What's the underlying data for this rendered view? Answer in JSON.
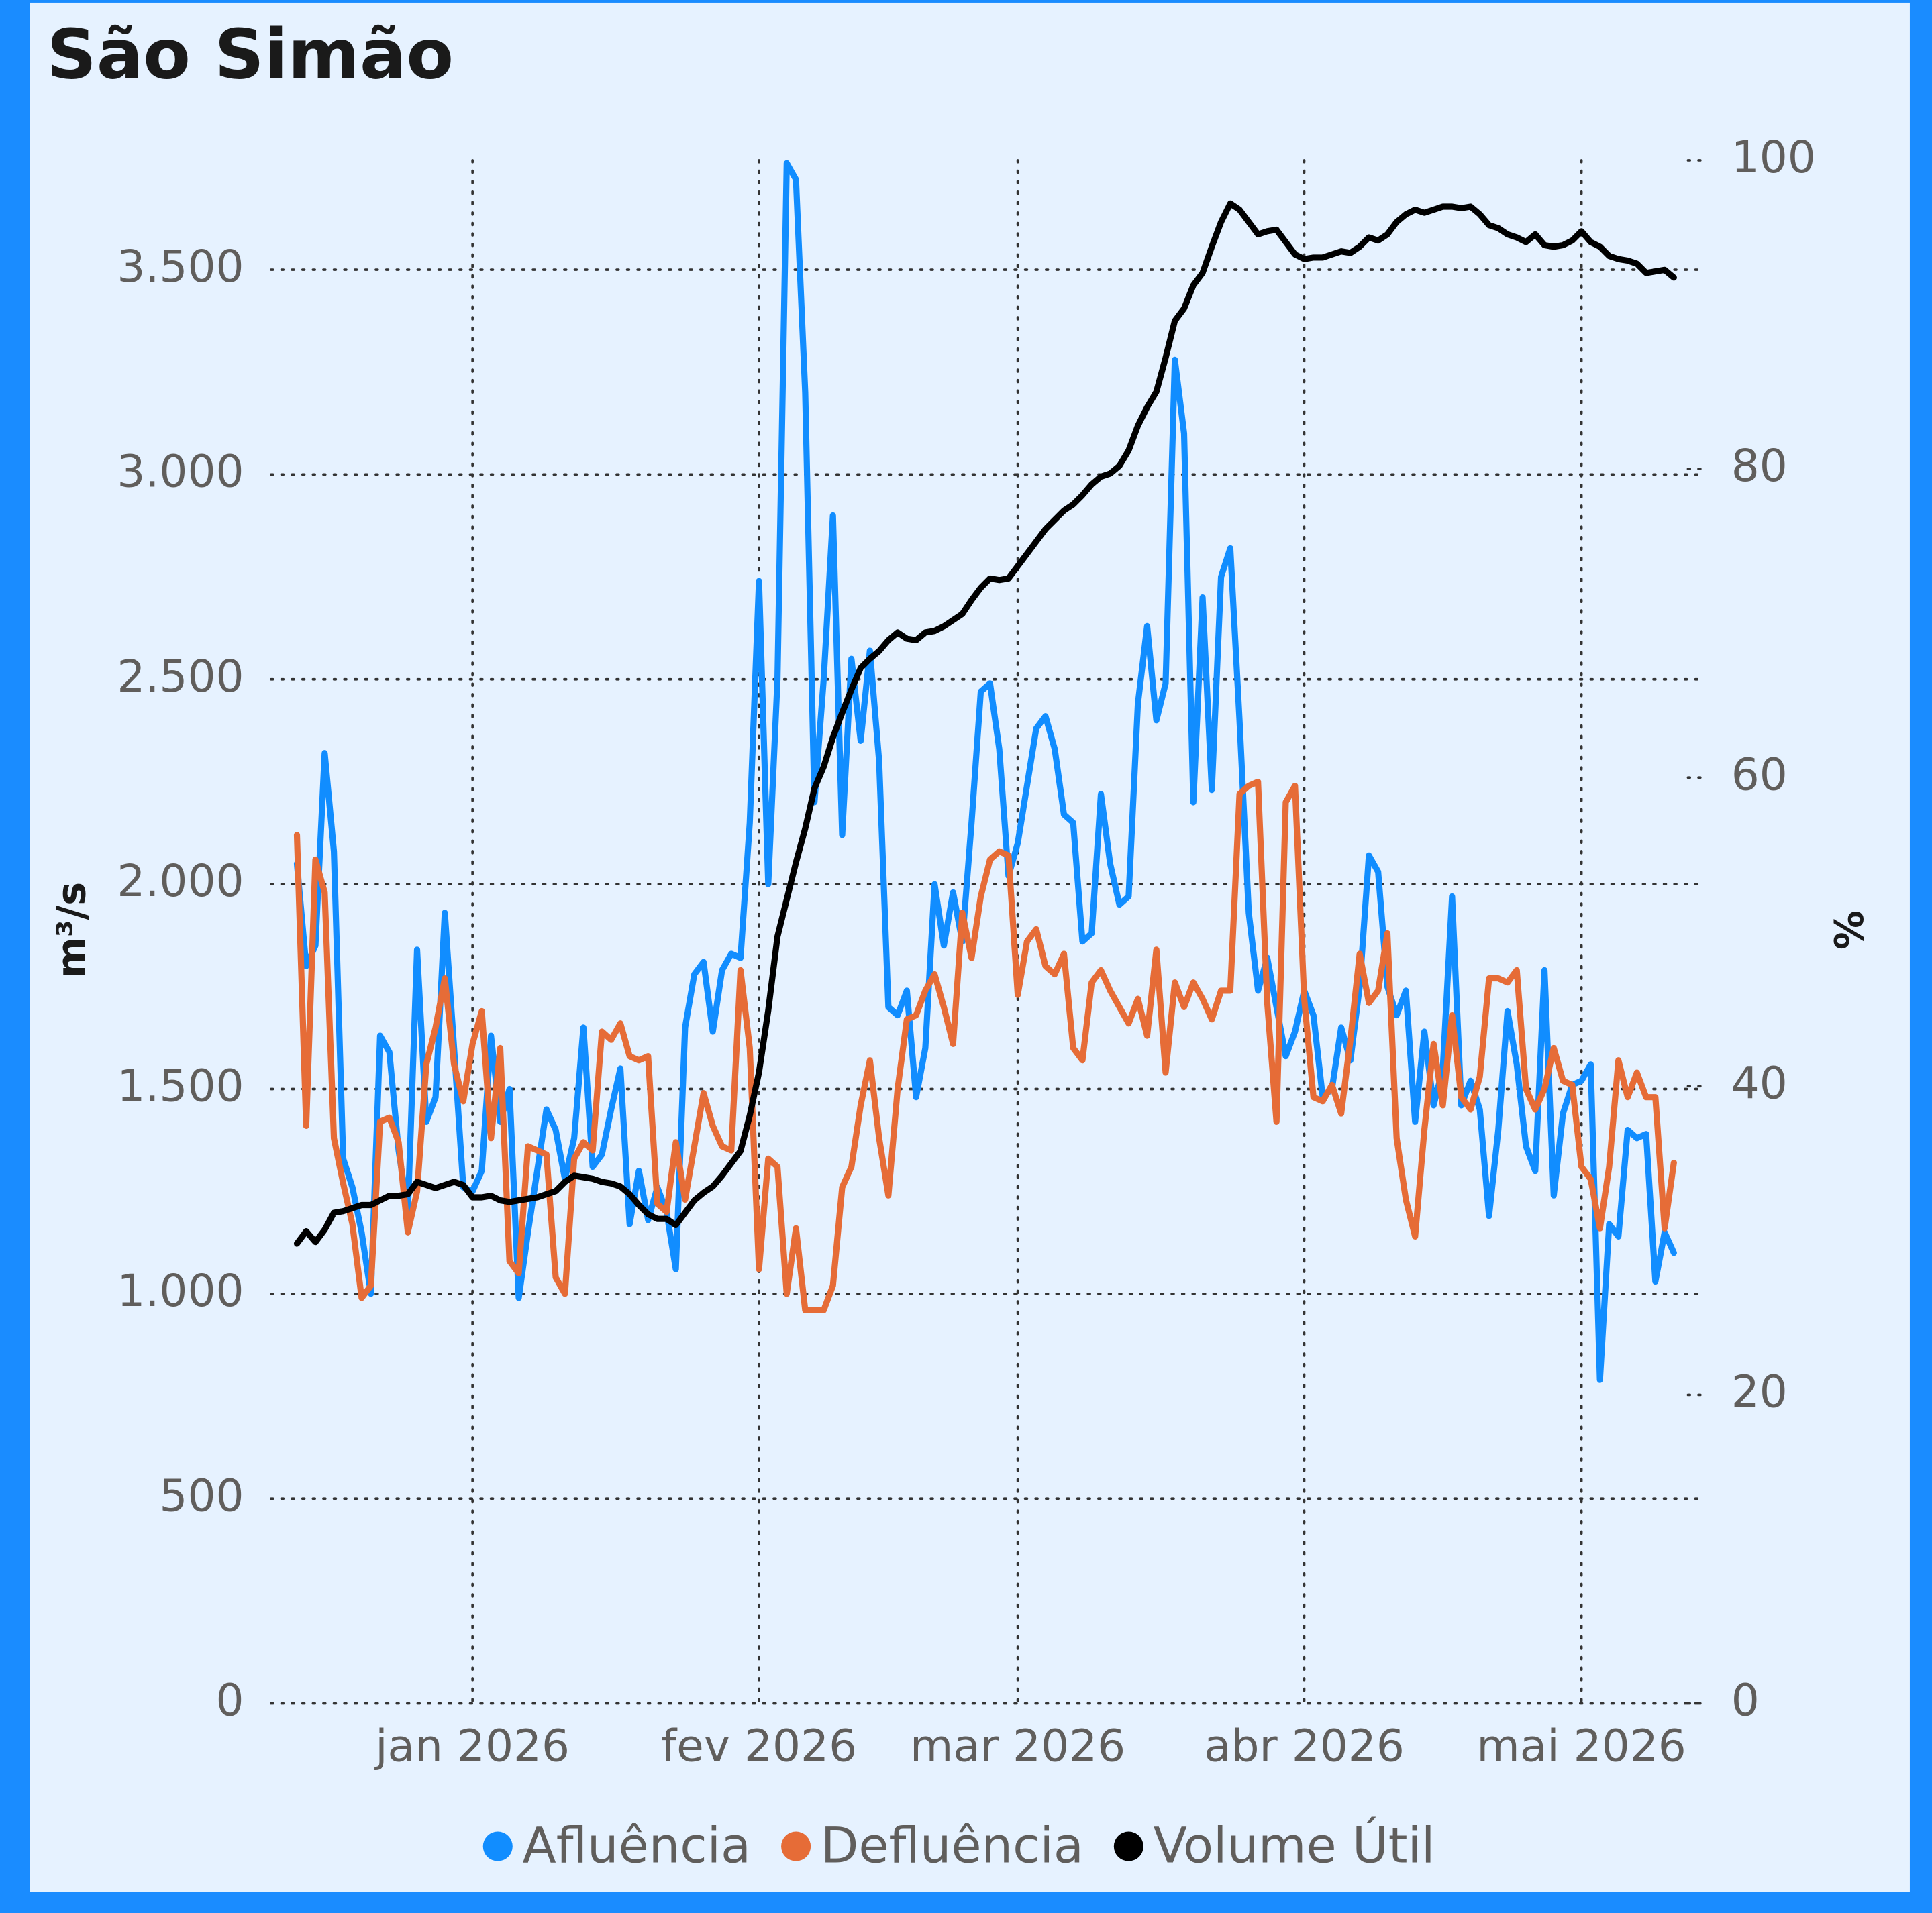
{
  "chart_data": {
    "type": "line",
    "title": "São Simão",
    "y_label": "m³/s",
    "y2_label": "%",
    "categories": [
      null,
      null,
      null,
      null,
      null,
      null,
      null,
      null,
      null,
      null,
      null,
      null,
      null,
      null,
      null,
      null,
      null,
      null,
      null,
      "jan 2026",
      null,
      null,
      null,
      null,
      null,
      null,
      null,
      null,
      null,
      null,
      null,
      null,
      null,
      null,
      null,
      null,
      null,
      null,
      null,
      null,
      null,
      null,
      null,
      null,
      null,
      null,
      null,
      null,
      null,
      null,
      "fev 2026",
      null,
      null,
      null,
      null,
      null,
      null,
      null,
      null,
      null,
      null,
      null,
      null,
      null,
      null,
      null,
      null,
      null,
      null,
      null,
      null,
      null,
      null,
      null,
      null,
      null,
      null,
      null,
      "mar 2026",
      null,
      null,
      null,
      null,
      null,
      null,
      null,
      null,
      null,
      null,
      null,
      null,
      null,
      null,
      null,
      null,
      null,
      null,
      null,
      null,
      null,
      null,
      null,
      null,
      null,
      null,
      null,
      null,
      null,
      null,
      "abr 2026",
      null,
      null,
      null,
      null,
      null,
      null,
      null,
      null,
      null,
      null,
      null,
      null,
      null,
      null,
      null,
      null,
      null,
      null,
      null,
      null,
      null,
      null,
      null,
      null,
      null,
      null,
      null,
      null,
      null,
      "mai 2026",
      null,
      null,
      null,
      null,
      null,
      null,
      null,
      null,
      null,
      null
    ],
    "series": [
      {
        "name": "Afluência",
        "color": "#118dff",
        "values": [
          2050,
          1800,
          1850,
          2320,
          2080,
          1330,
          1260,
          1150,
          1000,
          1630,
          1590,
          1350,
          1200,
          1840,
          1420,
          1480,
          1930,
          1600,
          1260,
          1250,
          1300,
          1630,
          1420,
          1500,
          990,
          1150,
          1300,
          1450,
          1400,
          1280,
          1380,
          1650,
          1310,
          1340,
          1450,
          1550,
          1170,
          1300,
          1180,
          1260,
          1200,
          1060,
          1650,
          1780,
          1810,
          1640,
          1790,
          1830,
          1820,
          2150,
          2740,
          2000,
          2500,
          3760,
          3720,
          3200,
          2200,
          2500,
          2900,
          2120,
          2550,
          2350,
          2570,
          2300,
          1700,
          1680,
          1740,
          1480,
          1600,
          2000,
          1850,
          1980,
          1860,
          2150,
          2470,
          2490,
          2330,
          2020,
          2100,
          2240,
          2380,
          2410,
          2330,
          2170,
          2150,
          1860,
          1880,
          2220,
          2050,
          1950,
          1970,
          2440,
          2630,
          2400,
          2490,
          3280,
          3100,
          2200,
          2700,
          2230,
          2750,
          2820,
          2400,
          1930,
          1740,
          1820,
          1700,
          1580,
          1640,
          1740,
          1680,
          1480,
          1500,
          1650,
          1570,
          1750,
          2070,
          2030,
          1750,
          1680,
          1740,
          1420,
          1640,
          1460,
          1550,
          1970,
          1460,
          1520,
          1450,
          1190,
          1400,
          1690,
          1560,
          1360,
          1300,
          1790,
          1240,
          1440,
          1510,
          1520,
          1560,
          790,
          1170,
          1140,
          1400,
          1380,
          1390,
          1030,
          1150,
          1100
        ]
      },
      {
        "name": "Defluência",
        "color": "#e66c37",
        "values": [
          2120,
          1410,
          2060,
          1980,
          1380,
          1270,
          1170,
          990,
          1020,
          1420,
          1430,
          1370,
          1150,
          1250,
          1560,
          1650,
          1770,
          1560,
          1470,
          1610,
          1690,
          1380,
          1600,
          1080,
          1050,
          1360,
          1350,
          1340,
          1040,
          1000,
          1330,
          1370,
          1350,
          1640,
          1620,
          1660,
          1580,
          1570,
          1580,
          1220,
          1200,
          1370,
          1230,
          1360,
          1490,
          1410,
          1360,
          1350,
          1790,
          1600,
          1060,
          1330,
          1310,
          1000,
          1160,
          960,
          960,
          960,
          1020,
          1260,
          1310,
          1460,
          1570,
          1380,
          1240,
          1500,
          1670,
          1680,
          1740,
          1780,
          1700,
          1610,
          1930,
          1820,
          1970,
          2060,
          2080,
          2070,
          1730,
          1860,
          1890,
          1800,
          1780,
          1830,
          1600,
          1570,
          1760,
          1790,
          1740,
          1700,
          1660,
          1720,
          1630,
          1840,
          1540,
          1760,
          1700,
          1760,
          1720,
          1670,
          1740,
          1740,
          2220,
          2240,
          2250,
          1710,
          1420,
          2200,
          2240,
          1720,
          1480,
          1470,
          1510,
          1440,
          1620,
          1830,
          1710,
          1740,
          1880,
          1380,
          1230,
          1140,
          1400,
          1610,
          1460,
          1680,
          1480,
          1450,
          1530,
          1770,
          1770,
          1760,
          1790,
          1500,
          1450,
          1500,
          1600,
          1520,
          1510,
          1310,
          1280,
          1160,
          1310,
          1570,
          1480,
          1540,
          1480,
          1480,
          1160,
          1320
        ]
      },
      {
        "name": "Volume Útil",
        "color": "#000000",
        "axis": "y2",
        "values": [
          29.8,
          30.6,
          29.9,
          30.7,
          31.8,
          31.9,
          32.1,
          32.3,
          32.3,
          32.6,
          32.9,
          32.9,
          33.0,
          33.8,
          33.6,
          33.4,
          33.6,
          33.8,
          33.6,
          32.8,
          32.8,
          32.9,
          32.6,
          32.5,
          32.6,
          32.7,
          32.8,
          33.0,
          33.2,
          33.8,
          34.2,
          34.1,
          34.0,
          33.8,
          33.7,
          33.5,
          33.0,
          32.3,
          31.7,
          31.4,
          31.4,
          31.0,
          31.8,
          32.6,
          33.1,
          33.5,
          34.2,
          35.0,
          35.8,
          38.1,
          40.9,
          44.9,
          49.7,
          52.1,
          54.5,
          56.7,
          59.3,
          60.7,
          62.6,
          64.2,
          65.7,
          67.1,
          67.7,
          68.2,
          68.9,
          69.4,
          69.0,
          68.9,
          69.4,
          69.5,
          69.8,
          70.2,
          70.6,
          71.5,
          72.3,
          72.9,
          72.8,
          72.9,
          73.7,
          74.5,
          75.3,
          76.1,
          76.7,
          77.3,
          77.7,
          78.3,
          79.0,
          79.5,
          79.7,
          80.2,
          81.2,
          82.8,
          84.0,
          85.0,
          87.2,
          89.6,
          90.4,
          91.9,
          92.7,
          94.4,
          96.0,
          97.2,
          96.8,
          96.0,
          95.2,
          95.4,
          95.5,
          94.7,
          93.9,
          93.6,
          93.7,
          93.7,
          93.9,
          94.1,
          94.0,
          94.4,
          95.0,
          94.8,
          95.2,
          96.0,
          96.5,
          96.8,
          96.6,
          96.8,
          97.0,
          97.0,
          96.9,
          97.0,
          96.5,
          95.8,
          95.6,
          95.2,
          95.0,
          94.7,
          95.2,
          94.5,
          94.4,
          94.5,
          94.8,
          95.4,
          94.7,
          94.4,
          93.8,
          93.6,
          93.5,
          93.3,
          92.7,
          92.8,
          92.9,
          92.4
        ]
      }
    ],
    "ylim": [
      0,
      3767
    ],
    "yticks": [
      0,
      500,
      {
        "value": 1000,
        "label": "1.000"
      },
      {
        "value": 1500,
        "label": "1.500"
      },
      {
        "value": 2000,
        "label": "2.000"
      },
      {
        "value": 2500,
        "label": "2.500"
      },
      {
        "value": 3000,
        "label": "3.000"
      },
      {
        "value": 3500,
        "label": "3.500"
      }
    ],
    "y2lim": [
      0,
      100
    ],
    "y2ticks": [
      0,
      20,
      40,
      60,
      80,
      100
    ],
    "grid": true,
    "legend": "bottom"
  }
}
